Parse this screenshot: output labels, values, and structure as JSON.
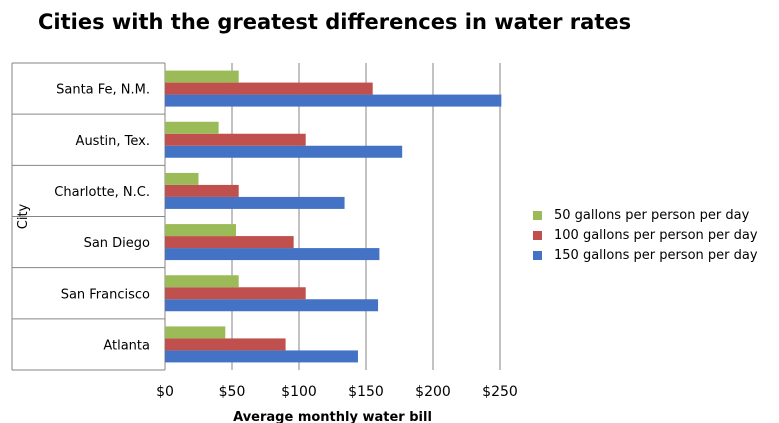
{
  "chart_data": {
    "type": "bar",
    "orientation": "horizontal",
    "title": "Cities with the greatest differences in water rates",
    "xlabel": "Average monthly water bill",
    "ylabel": "City",
    "categories": [
      "Atlanta",
      "San Francisco",
      "San Diego",
      "Charlotte, N.C.",
      "Austin, Tex.",
      "Santa Fe, N.M."
    ],
    "series": [
      {
        "name": "150 gallons per person per day",
        "color": "#4472c4",
        "values": [
          144,
          159,
          160,
          134,
          177,
          251
        ]
      },
      {
        "name": "100 gallons per person per day",
        "color": "#c0504d",
        "values": [
          90,
          105,
          96,
          55,
          105,
          155
        ]
      },
      {
        "name": "50 gallons per person per day",
        "color": "#9bbb59",
        "values": [
          45,
          55,
          53,
          25,
          40,
          55
        ]
      }
    ],
    "xlim": [
      0,
      250
    ],
    "xticks": [
      0,
      50,
      100,
      150,
      200,
      250
    ],
    "xtick_labels": [
      "$0",
      "$50",
      "$100",
      "$150",
      "$200",
      "$250"
    ],
    "grid": true,
    "legend_position": "right",
    "legend_order": [
      "50 gallons per person per day",
      "100 gallons per person per day",
      "150 gallons per person per day"
    ]
  }
}
